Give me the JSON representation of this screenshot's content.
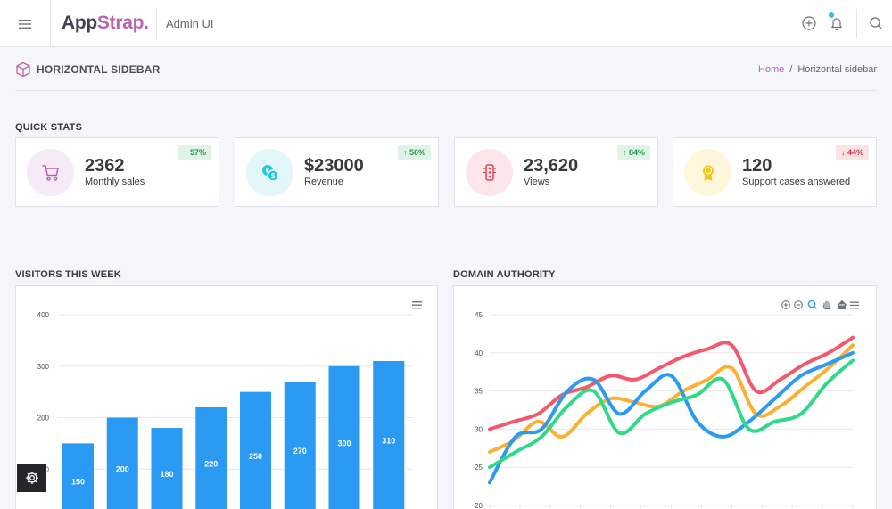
{
  "header": {
    "brand_part1": "App",
    "brand_part2": "Strap.",
    "subtitle": "Admin UI"
  },
  "page": {
    "title": "HORIZONTAL SIDEBAR",
    "breadcrumb": {
      "home": "Home",
      "separator": "/",
      "current": "Horizontal sidebar"
    }
  },
  "quick_stats": {
    "title": "QUICK STATS",
    "cards": [
      {
        "value": "2362",
        "label": "Monthly sales",
        "badge": "↑ 57%",
        "trend": "up",
        "icon": "cart-icon",
        "color": "#b565b4"
      },
      {
        "value": "$23000",
        "label": "Revenue",
        "badge": "↑ 56%",
        "trend": "up",
        "icon": "money-icon",
        "color": "#25c6da"
      },
      {
        "value": "23,620",
        "label": "Views",
        "badge": "↑ 84%",
        "trend": "up",
        "icon": "traffic-light-icon",
        "color": "#e54058"
      },
      {
        "value": "120",
        "label": "Support cases answered",
        "badge": "↓ 44%",
        "trend": "down",
        "icon": "award-icon",
        "color": "#f5c518"
      }
    ]
  },
  "visitors": {
    "title": "VISITORS THIS WEEK"
  },
  "domain_authority": {
    "title": "DOMAIN AUTHORITY"
  },
  "chart_data": [
    {
      "type": "bar",
      "title": "VISITORS THIS WEEK",
      "xlabel": "",
      "ylabel": "",
      "ylim": [
        0,
        400
      ],
      "yticks": [
        "400",
        "300",
        "200",
        "100"
      ],
      "values": [
        150,
        200,
        180,
        220,
        250,
        270,
        300,
        310
      ],
      "data_labels": [
        "150",
        "200",
        "180",
        "220",
        "250",
        "270",
        "300",
        "310"
      ],
      "color": "#2b9af3",
      "grid": true
    },
    {
      "type": "line",
      "title": "DOMAIN AUTHORITY",
      "xlabel": "",
      "ylabel": "",
      "ylim": [
        20,
        45
      ],
      "yticks": [
        "45",
        "40",
        "35",
        "30",
        "25",
        "20"
      ],
      "grid": true,
      "series": [
        {
          "color": "#f5576c",
          "values": [
            30,
            31,
            32,
            34.5,
            35.5,
            37,
            36.5,
            38,
            39.5,
            40.5,
            41,
            35,
            36.5,
            38.5,
            40,
            42
          ]
        },
        {
          "color": "#fbb034",
          "values": [
            27,
            28.5,
            31,
            29,
            32,
            34,
            33.5,
            33,
            35,
            36.5,
            38,
            32,
            33,
            35.5,
            38,
            41
          ]
        },
        {
          "color": "#2b9af3",
          "values": [
            23,
            29,
            30,
            35,
            36.5,
            32,
            35,
            37,
            31,
            29,
            31,
            34,
            37,
            38.5,
            40
          ]
        },
        {
          "color": "#2fd98a",
          "values": [
            25,
            27,
            29,
            33,
            35,
            29.5,
            32,
            33.5,
            34.5,
            36.5,
            30,
            31,
            32,
            36,
            39
          ]
        }
      ]
    }
  ]
}
